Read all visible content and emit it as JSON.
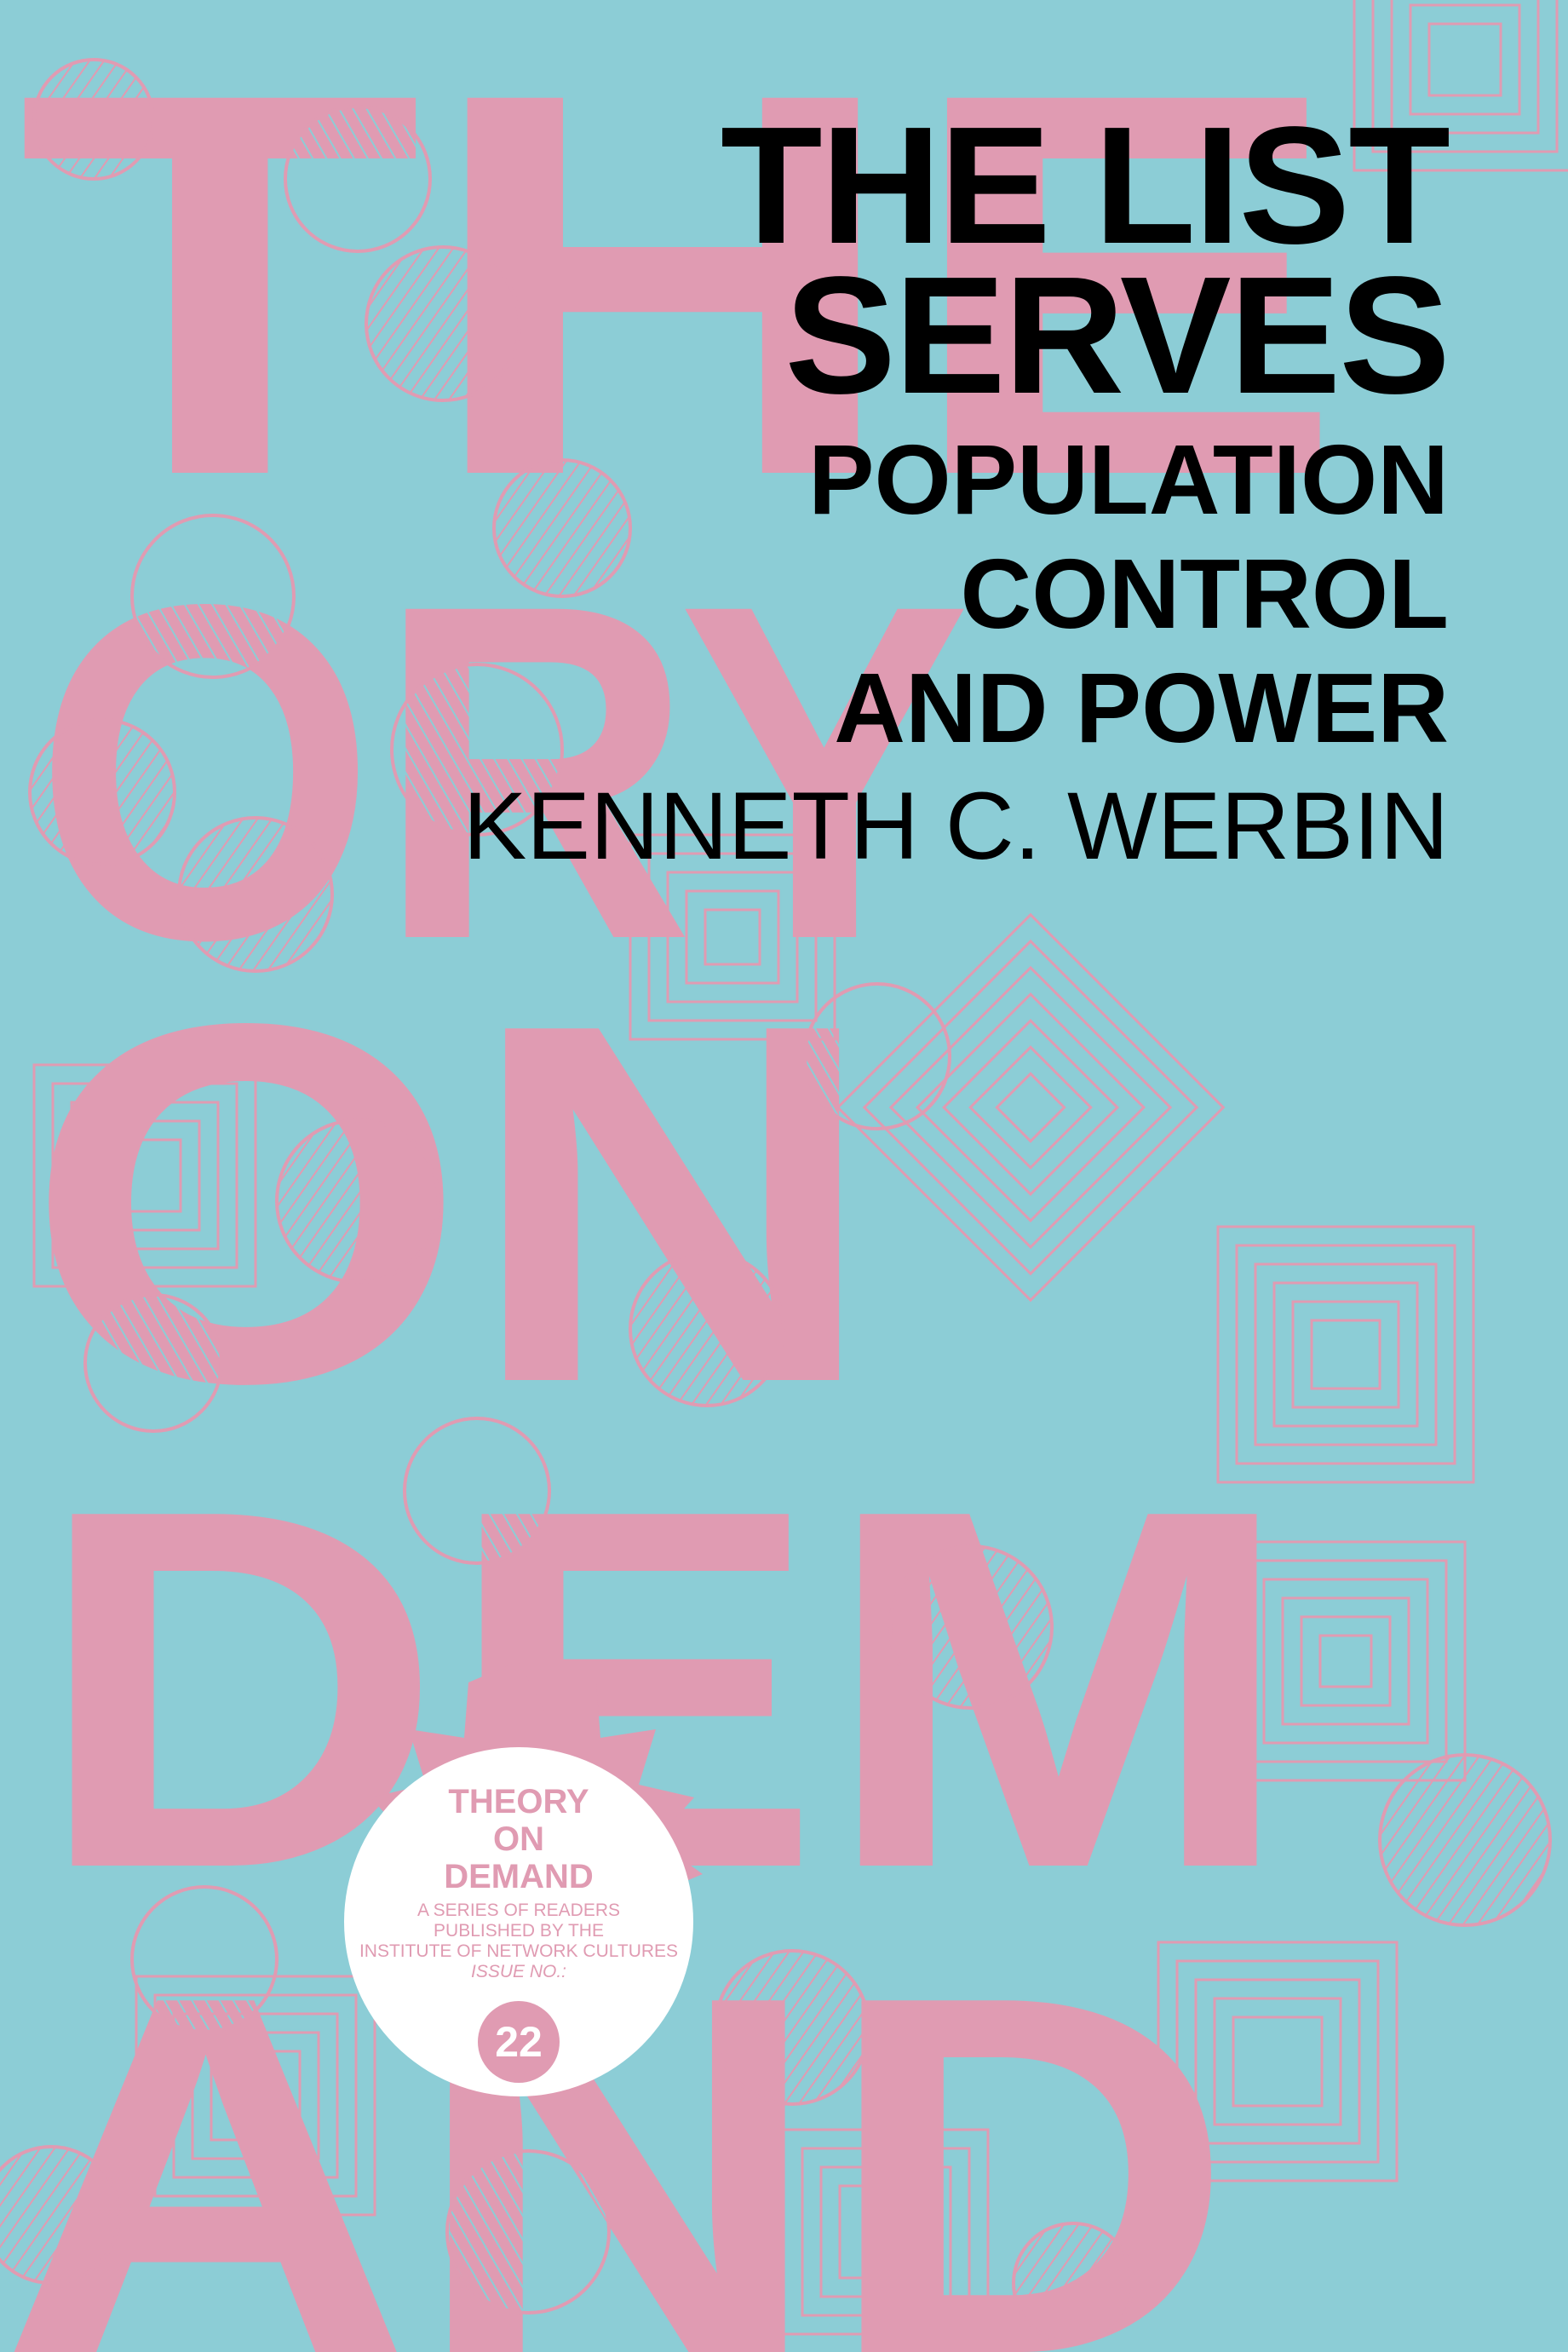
{
  "colors": {
    "background": "#8ccdd6",
    "pink": "#e09bb2",
    "title": "#000000",
    "badge": "#ffffff"
  },
  "title": {
    "line1": "THE LIST",
    "line2": "SERVES"
  },
  "subtitle": {
    "line1": "POPULATION",
    "line2": "CONTROL",
    "line3": "AND POWER"
  },
  "author": "KENNETH C. WERBIN",
  "background_lettering": [
    "THE",
    "ORY",
    "ON",
    "DEM",
    "AND"
  ],
  "badge": {
    "series_line1": "THEORY",
    "series_line2": "ON",
    "series_line3": "DEMAND",
    "desc_line1": "A SERIES OF READERS",
    "desc_line2": "PUBLISHED BY THE",
    "desc_line3": "INSTITUTE OF NETWORK CULTURES",
    "issue_label": "ISSUE NO.:",
    "issue_number": "22"
  }
}
